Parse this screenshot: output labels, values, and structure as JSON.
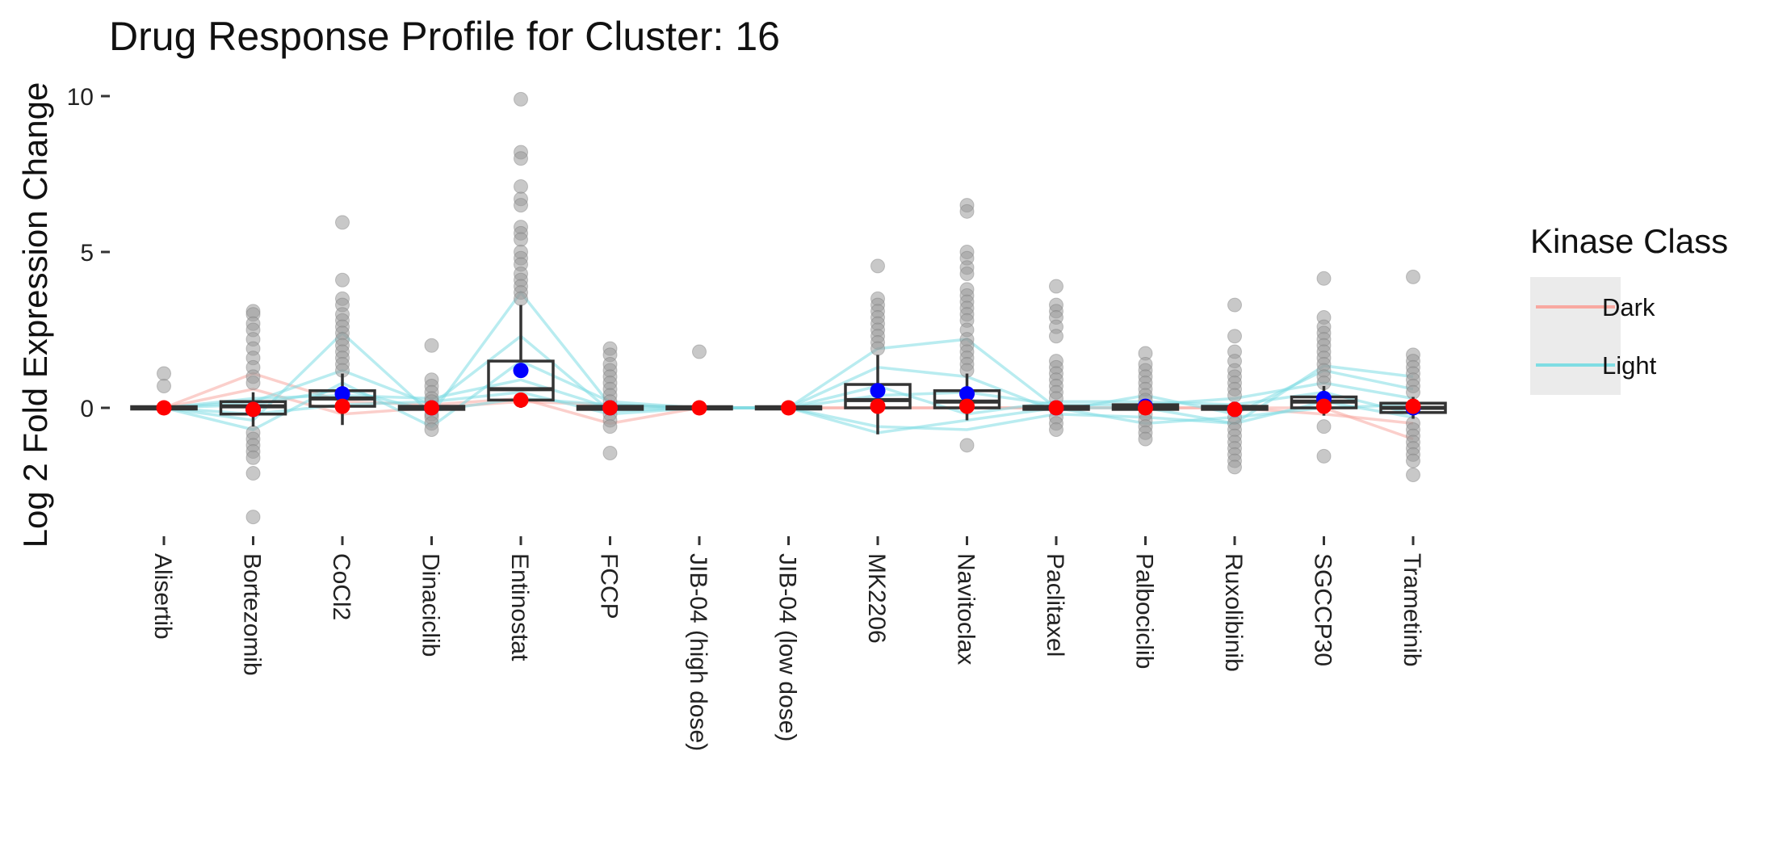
{
  "chart_data": {
    "type": "box",
    "title": "Drug Response Profile for Cluster:  16",
    "xlabel": "",
    "ylabel": "Log 2 Fold Expression Change",
    "ylim": [
      -3.6,
      10.3
    ],
    "yticks": [
      0,
      5,
      10
    ],
    "grid": false,
    "categories": [
      "Alisertib",
      "Bortezomib",
      "CoCl2",
      "Dinaciclib",
      "Entinostat",
      "FCCP",
      "JIB-04 (high dose)",
      "JIB-04 (low dose)",
      "MK2206",
      "Navitoclax",
      "Paclitaxel",
      "Palbociclib",
      "Ruxolibinib",
      "SGCCP30",
      "Trametinib"
    ],
    "boxes": [
      {
        "q1": 0,
        "median": 0,
        "q3": 0,
        "whisker_low": 0,
        "whisker_high": 0
      },
      {
        "q1": -0.2,
        "median": 0.05,
        "q3": 0.2,
        "whisker_low": -0.6,
        "whisker_high": 0.5
      },
      {
        "q1": 0.05,
        "median": 0.3,
        "q3": 0.55,
        "whisker_low": -0.55,
        "whisker_high": 1.1
      },
      {
        "q1": -0.05,
        "median": 0,
        "q3": 0.05,
        "whisker_low": -0.1,
        "whisker_high": 0.1
      },
      {
        "q1": 0.25,
        "median": 0.6,
        "q3": 1.5,
        "whisker_low": 0.0,
        "whisker_high": 3.3
      },
      {
        "q1": -0.05,
        "median": 0,
        "q3": 0.05,
        "whisker_low": -0.1,
        "whisker_high": 0.1
      },
      {
        "q1": 0,
        "median": 0,
        "q3": 0,
        "whisker_low": 0,
        "whisker_high": 0
      },
      {
        "q1": 0,
        "median": 0,
        "q3": 0,
        "whisker_low": 0,
        "whisker_high": 0
      },
      {
        "q1": 0,
        "median": 0.25,
        "q3": 0.75,
        "whisker_low": -0.85,
        "whisker_high": 1.7
      },
      {
        "q1": 0,
        "median": 0.2,
        "q3": 0.55,
        "whisker_low": -0.4,
        "whisker_high": 1.1
      },
      {
        "q1": -0.05,
        "median": 0,
        "q3": 0.05,
        "whisker_low": -0.1,
        "whisker_high": 0.1
      },
      {
        "q1": -0.05,
        "median": 0.05,
        "q3": 0.1,
        "whisker_low": -0.15,
        "whisker_high": 0.2
      },
      {
        "q1": -0.05,
        "median": 0,
        "q3": 0.05,
        "whisker_low": -0.1,
        "whisker_high": 0.1
      },
      {
        "q1": 0.0,
        "median": 0.2,
        "q3": 0.35,
        "whisker_low": -0.25,
        "whisker_high": 0.7
      },
      {
        "q1": -0.15,
        "median": 0,
        "q3": 0.15,
        "whisker_low": -0.35,
        "whisker_high": 0.35
      }
    ],
    "outliers": [
      [
        1.1,
        0.7
      ],
      [
        3.1,
        3.0,
        2.7,
        2.5,
        2.2,
        1.9,
        1.6,
        1.3,
        1.0,
        0.8,
        -0.8,
        -1.0,
        -1.2,
        -1.4,
        -1.6,
        -2.1,
        -3.5
      ],
      [
        5.95,
        4.1,
        3.5,
        3.3,
        3.0,
        2.8,
        2.6,
        2.4,
        2.2,
        2.0,
        1.8,
        1.6,
        1.4,
        1.2
      ],
      [
        2.0,
        0.9,
        0.7,
        0.5,
        0.3,
        0.2,
        -0.2,
        -0.3,
        -0.5,
        -0.7
      ],
      [
        9.9,
        8.2,
        8.0,
        7.1,
        6.7,
        6.5,
        5.8,
        5.6,
        5.4,
        5.0,
        4.8,
        4.6,
        4.3,
        4.1,
        3.9,
        3.7,
        3.5
      ],
      [
        1.9,
        1.7,
        1.4,
        1.2,
        1.0,
        0.8,
        0.6,
        0.4,
        0.2,
        -0.2,
        -0.4,
        -0.6,
        -1.45
      ],
      [
        1.8
      ],
      [],
      [
        4.55,
        3.5,
        3.3,
        3.1,
        2.9,
        2.7,
        2.5,
        2.3,
        2.1,
        1.9
      ],
      [
        6.5,
        6.3,
        5.0,
        4.8,
        4.5,
        4.3,
        3.8,
        3.6,
        3.4,
        3.2,
        3.0,
        2.8,
        2.5,
        2.2,
        2.0,
        1.8,
        1.6,
        1.4,
        1.2,
        -1.2
      ],
      [
        3.9,
        3.3,
        3.1,
        2.9,
        2.6,
        2.3,
        1.5,
        1.3,
        1.1,
        0.9,
        0.7,
        0.5,
        0.3,
        -0.3,
        -0.5,
        -0.7
      ],
      [
        1.75,
        1.4,
        1.2,
        1.0,
        0.8,
        0.6,
        0.4,
        0.25,
        -0.2,
        -0.4,
        -0.6,
        -0.8,
        -1.0
      ],
      [
        3.3,
        2.3,
        1.8,
        1.5,
        1.2,
        1.0,
        0.8,
        0.6,
        0.4,
        -0.3,
        -0.5,
        -0.7,
        -0.9,
        -1.1,
        -1.3,
        -1.5,
        -1.7,
        -1.9
      ],
      [
        4.15,
        2.9,
        2.6,
        2.4,
        2.2,
        2.0,
        1.8,
        1.6,
        1.4,
        1.2,
        1.0,
        0.8,
        -0.6,
        -1.55
      ],
      [
        4.2,
        1.7,
        1.5,
        1.3,
        1.1,
        0.9,
        0.7,
        0.5,
        -0.5,
        -0.7,
        -0.9,
        -1.1,
        -1.3,
        -1.5,
        -1.7,
        -2.15
      ]
    ],
    "mean_light": [
      null,
      -0.05,
      0.45,
      0.0,
      1.2,
      0.0,
      null,
      null,
      0.55,
      0.45,
      0.0,
      0.05,
      -0.05,
      0.3,
      0.0
    ],
    "mean_dark": [
      0.0,
      -0.05,
      0.05,
      0.0,
      0.25,
      0.0,
      0.0,
      0.0,
      0.05,
      0.05,
      0.0,
      0.0,
      -0.05,
      0.05,
      0.05
    ],
    "series": [
      {
        "name": "Dark",
        "values": [
          0,
          1.1,
          0.2,
          0.1,
          0.3,
          -0.5,
          0,
          0,
          0,
          0,
          0,
          0,
          0,
          0,
          -1.0
        ]
      },
      {
        "name": "Dark",
        "values": [
          0,
          0.6,
          -0.2,
          0.0,
          0.2,
          0.1,
          0,
          0,
          0,
          0,
          0,
          0,
          0,
          -0.2,
          -0.5
        ]
      },
      {
        "name": "Light",
        "values": [
          0,
          -0.4,
          2.4,
          -0.2,
          3.7,
          0.1,
          0,
          0,
          1.9,
          2.2,
          0.0,
          0.0,
          -0.5,
          1.35,
          1.0
        ]
      },
      {
        "name": "Light",
        "values": [
          0,
          0.2,
          1.2,
          0.1,
          2.3,
          -0.1,
          0,
          0,
          1.3,
          1.0,
          -0.1,
          0.4,
          -0.2,
          1.2,
          0.6
        ]
      },
      {
        "name": "Light",
        "values": [
          0,
          -0.7,
          0.8,
          -0.6,
          1.5,
          0.2,
          0,
          0,
          0.4,
          0.5,
          0.1,
          0.1,
          0.3,
          0.8,
          0.3
        ]
      },
      {
        "name": "Light",
        "values": [
          0,
          0.3,
          0.4,
          0.3,
          0.9,
          0.0,
          0,
          0,
          -0.6,
          -0.7,
          -0.2,
          -0.3,
          -0.5,
          0.2,
          -0.3
        ]
      },
      {
        "name": "Light",
        "values": [
          0,
          -0.2,
          0.1,
          0.2,
          0.5,
          -0.2,
          0,
          0,
          -0.8,
          -0.4,
          0.0,
          -0.5,
          -0.3,
          0.0,
          0.1
        ]
      },
      {
        "name": "Light",
        "values": [
          0,
          0.1,
          0.6,
          -0.1,
          0.3,
          0.1,
          0,
          0,
          0.7,
          -0.2,
          0.2,
          0.2,
          0.1,
          0.5,
          -0.2
        ]
      }
    ],
    "legend": {
      "title": "Kinase Class",
      "position": "right",
      "items": [
        {
          "label": "Dark",
          "color": "#f8a8a0"
        },
        {
          "label": "Light",
          "color": "#7fdde3"
        }
      ]
    },
    "colors": {
      "dark_line": "#f8a8a0",
      "light_line": "#7fdde3",
      "mean_light": "#0000ff",
      "mean_dark": "#ff0000",
      "outlier": "#9a9a9a",
      "box": "#333333",
      "legend_bg": "#ebebeb"
    }
  }
}
